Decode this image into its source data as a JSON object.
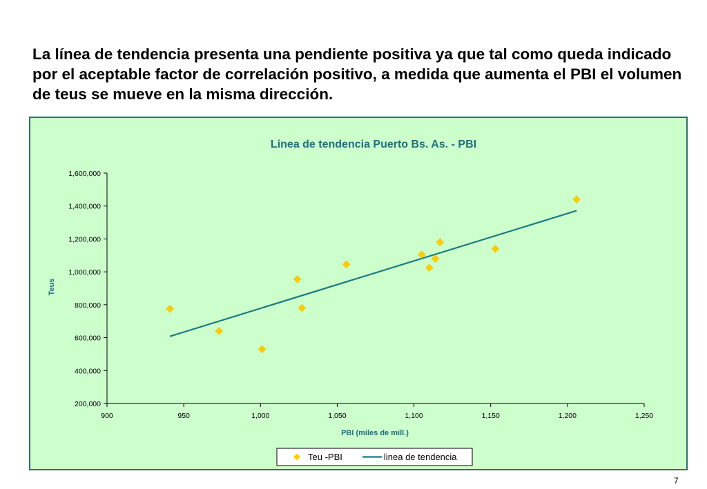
{
  "slide": {
    "heading": "La línea de tendencia presenta una pendiente positiva ya que tal como queda indicado por el aceptable factor de correlación positivo, a medida que aumenta el PBI el volumen de teus se mueve en la misma dirección.",
    "page_number": "7"
  },
  "colors": {
    "panel_background": "#ccffcc",
    "title_color": "#1f6f7f",
    "marker_color": "#ffcc00",
    "trend_color": "#1a7a80"
  },
  "chart_data": {
    "type": "scatter",
    "title": "Linea de tendencia Puerto Bs. As. - PBI",
    "xlabel": "PBI (miles de mill.)",
    "ylabel": "Teus",
    "xlim": [
      900,
      1250
    ],
    "ylim": [
      200000,
      1600000
    ],
    "x_ticks": [
      900,
      950,
      1000,
      1050,
      1100,
      1150,
      1200,
      1250
    ],
    "x_tick_labels": [
      "900",
      "950",
      "1,000",
      "1,050",
      "1,100",
      "1,150",
      "1,200",
      "1,250"
    ],
    "y_ticks": [
      200000,
      400000,
      600000,
      800000,
      1000000,
      1200000,
      1400000,
      1600000
    ],
    "y_tick_labels": [
      "200,000",
      "400,000",
      "600,000",
      "800,000",
      "1,000,000",
      "1,200,000",
      "1,400,000",
      "1,600,000"
    ],
    "grid": false,
    "legend_position": "bottom",
    "series": [
      {
        "name": "Teu -PBI",
        "kind": "markers",
        "marker": "diamond",
        "x": [
          941,
          973,
          1001,
          1024,
          1027,
          1056,
          1105,
          1110,
          1114,
          1117,
          1153,
          1206
        ],
        "y": [
          775000,
          640000,
          530000,
          955000,
          780000,
          1045000,
          1105000,
          1025000,
          1080000,
          1180000,
          1140000,
          1440000
        ]
      },
      {
        "name": "linea de tendencia",
        "kind": "line",
        "x": [
          941,
          1206
        ],
        "y": [
          608000,
          1372000
        ]
      }
    ]
  }
}
